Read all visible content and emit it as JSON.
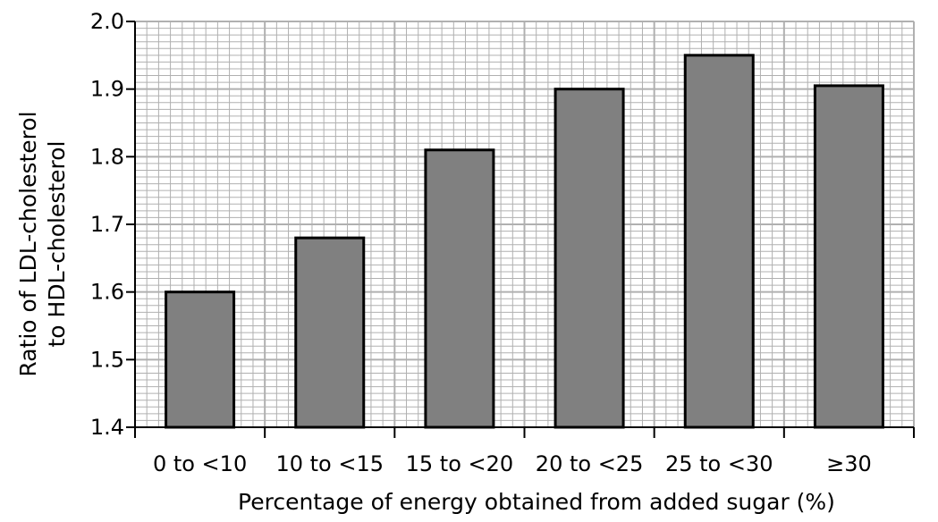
{
  "chart_data": {
    "type": "bar",
    "title": "",
    "xlabel": "Percentage of energy obtained from added sugar (%)",
    "ylabel_lines": [
      "Ratio of LDL-cholesterol",
      "to HDL-cholesterol"
    ],
    "categories": [
      "0 to <10",
      "10 to <15",
      "15 to <20",
      "20 to <25",
      "25 to <30",
      "≥30"
    ],
    "values": [
      1.6,
      1.68,
      1.81,
      1.9,
      1.95,
      1.905
    ],
    "ylim": [
      1.4,
      2.0
    ],
    "yticks": [
      "1.4",
      "1.5",
      "1.6",
      "1.7",
      "1.8",
      "1.9",
      "2.0"
    ],
    "grid": true,
    "legend": "none",
    "bar_color": "#808080",
    "grid_color": "#b0b0b0"
  }
}
